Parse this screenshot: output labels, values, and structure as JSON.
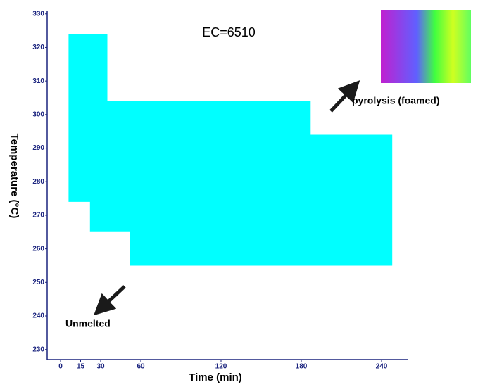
{
  "chart_data": {
    "type": "area",
    "x_label": "Time (min)",
    "y_label": "Temperature (°C)",
    "annotations": [
      "EC=6510",
      "pyrolysis (foamed)",
      "Unmelted"
    ],
    "series": [
      {
        "color": "#00ffff",
        "x": [
          6,
          35,
          35,
          187,
          187,
          248,
          248,
          52,
          52,
          22,
          22,
          6
        ],
        "values": [
          324,
          324,
          304,
          304,
          294,
          294,
          255,
          255,
          265,
          265,
          274,
          274
        ]
      }
    ],
    "xlim": [
      -10,
      260
    ],
    "xticks": [
      0,
      15,
      30,
      60,
      120,
      180,
      240
    ],
    "ylim": [
      227,
      331
    ],
    "yticks": [
      230,
      240,
      250,
      260,
      270,
      280,
      290,
      300,
      310,
      320,
      330
    ]
  }
}
